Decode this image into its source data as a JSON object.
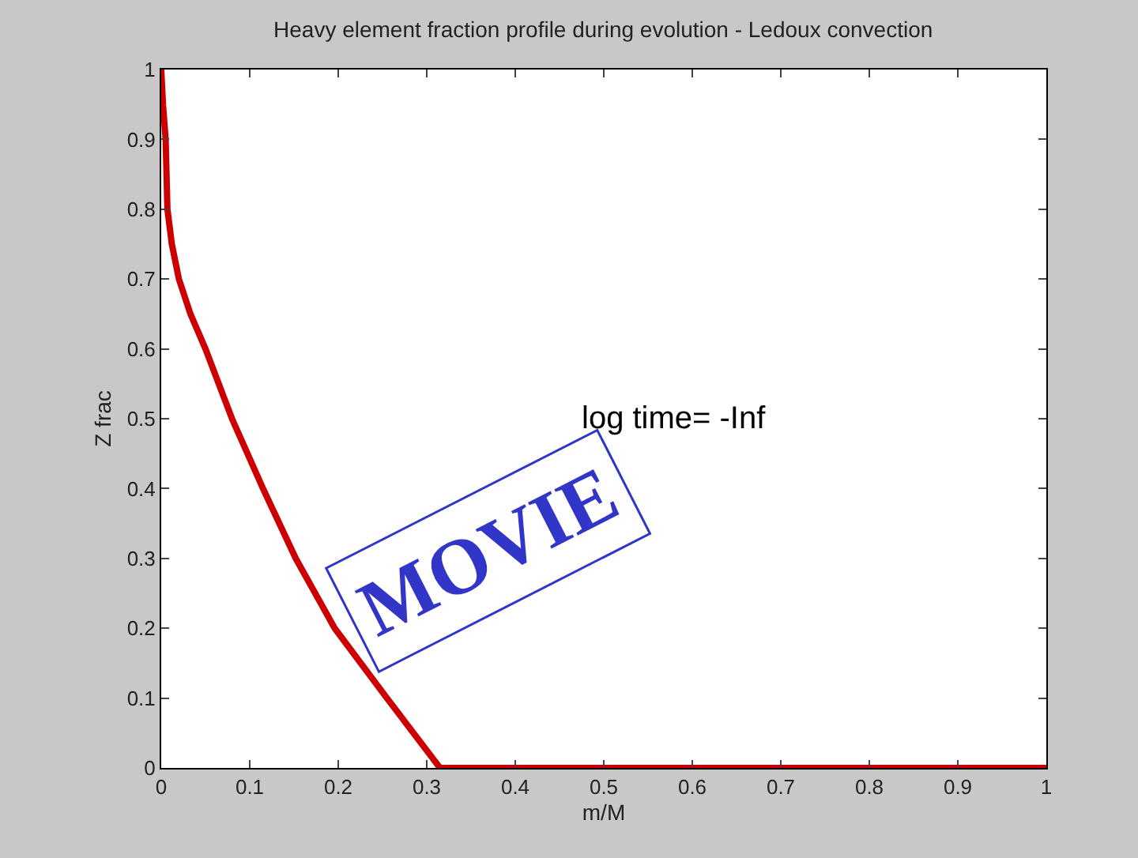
{
  "chart_data": {
    "type": "line",
    "title": "Heavy element fraction profile during evolution - Ledoux convection",
    "xlabel": "m/M",
    "ylabel": "Z frac",
    "x": [
      0,
      0.002,
      0.005,
      0.007,
      0.012,
      0.02,
      0.033,
      0.05,
      0.08,
      0.115,
      0.152,
      0.196,
      0.255,
      0.315,
      1
    ],
    "series": [
      {
        "color": "#cc0000",
        "values": [
          1,
          0.95,
          0.9,
          0.8,
          0.75,
          0.7,
          0.65,
          0.6,
          0.5,
          0.4,
          0.3,
          0.2,
          0.1,
          0,
          0
        ]
      }
    ],
    "xlim": [
      0,
      1
    ],
    "ylim": [
      0,
      1
    ],
    "xticks": [
      0,
      0.1,
      0.2,
      0.3,
      0.4,
      0.5,
      0.6,
      0.7,
      0.8,
      0.9,
      1
    ],
    "yticks": [
      0,
      0.1,
      0.2,
      0.3,
      0.4,
      0.5,
      0.6,
      0.7,
      0.8,
      0.9,
      1
    ],
    "annotations": [
      "log time= -Inf",
      "MOVIE"
    ]
  }
}
